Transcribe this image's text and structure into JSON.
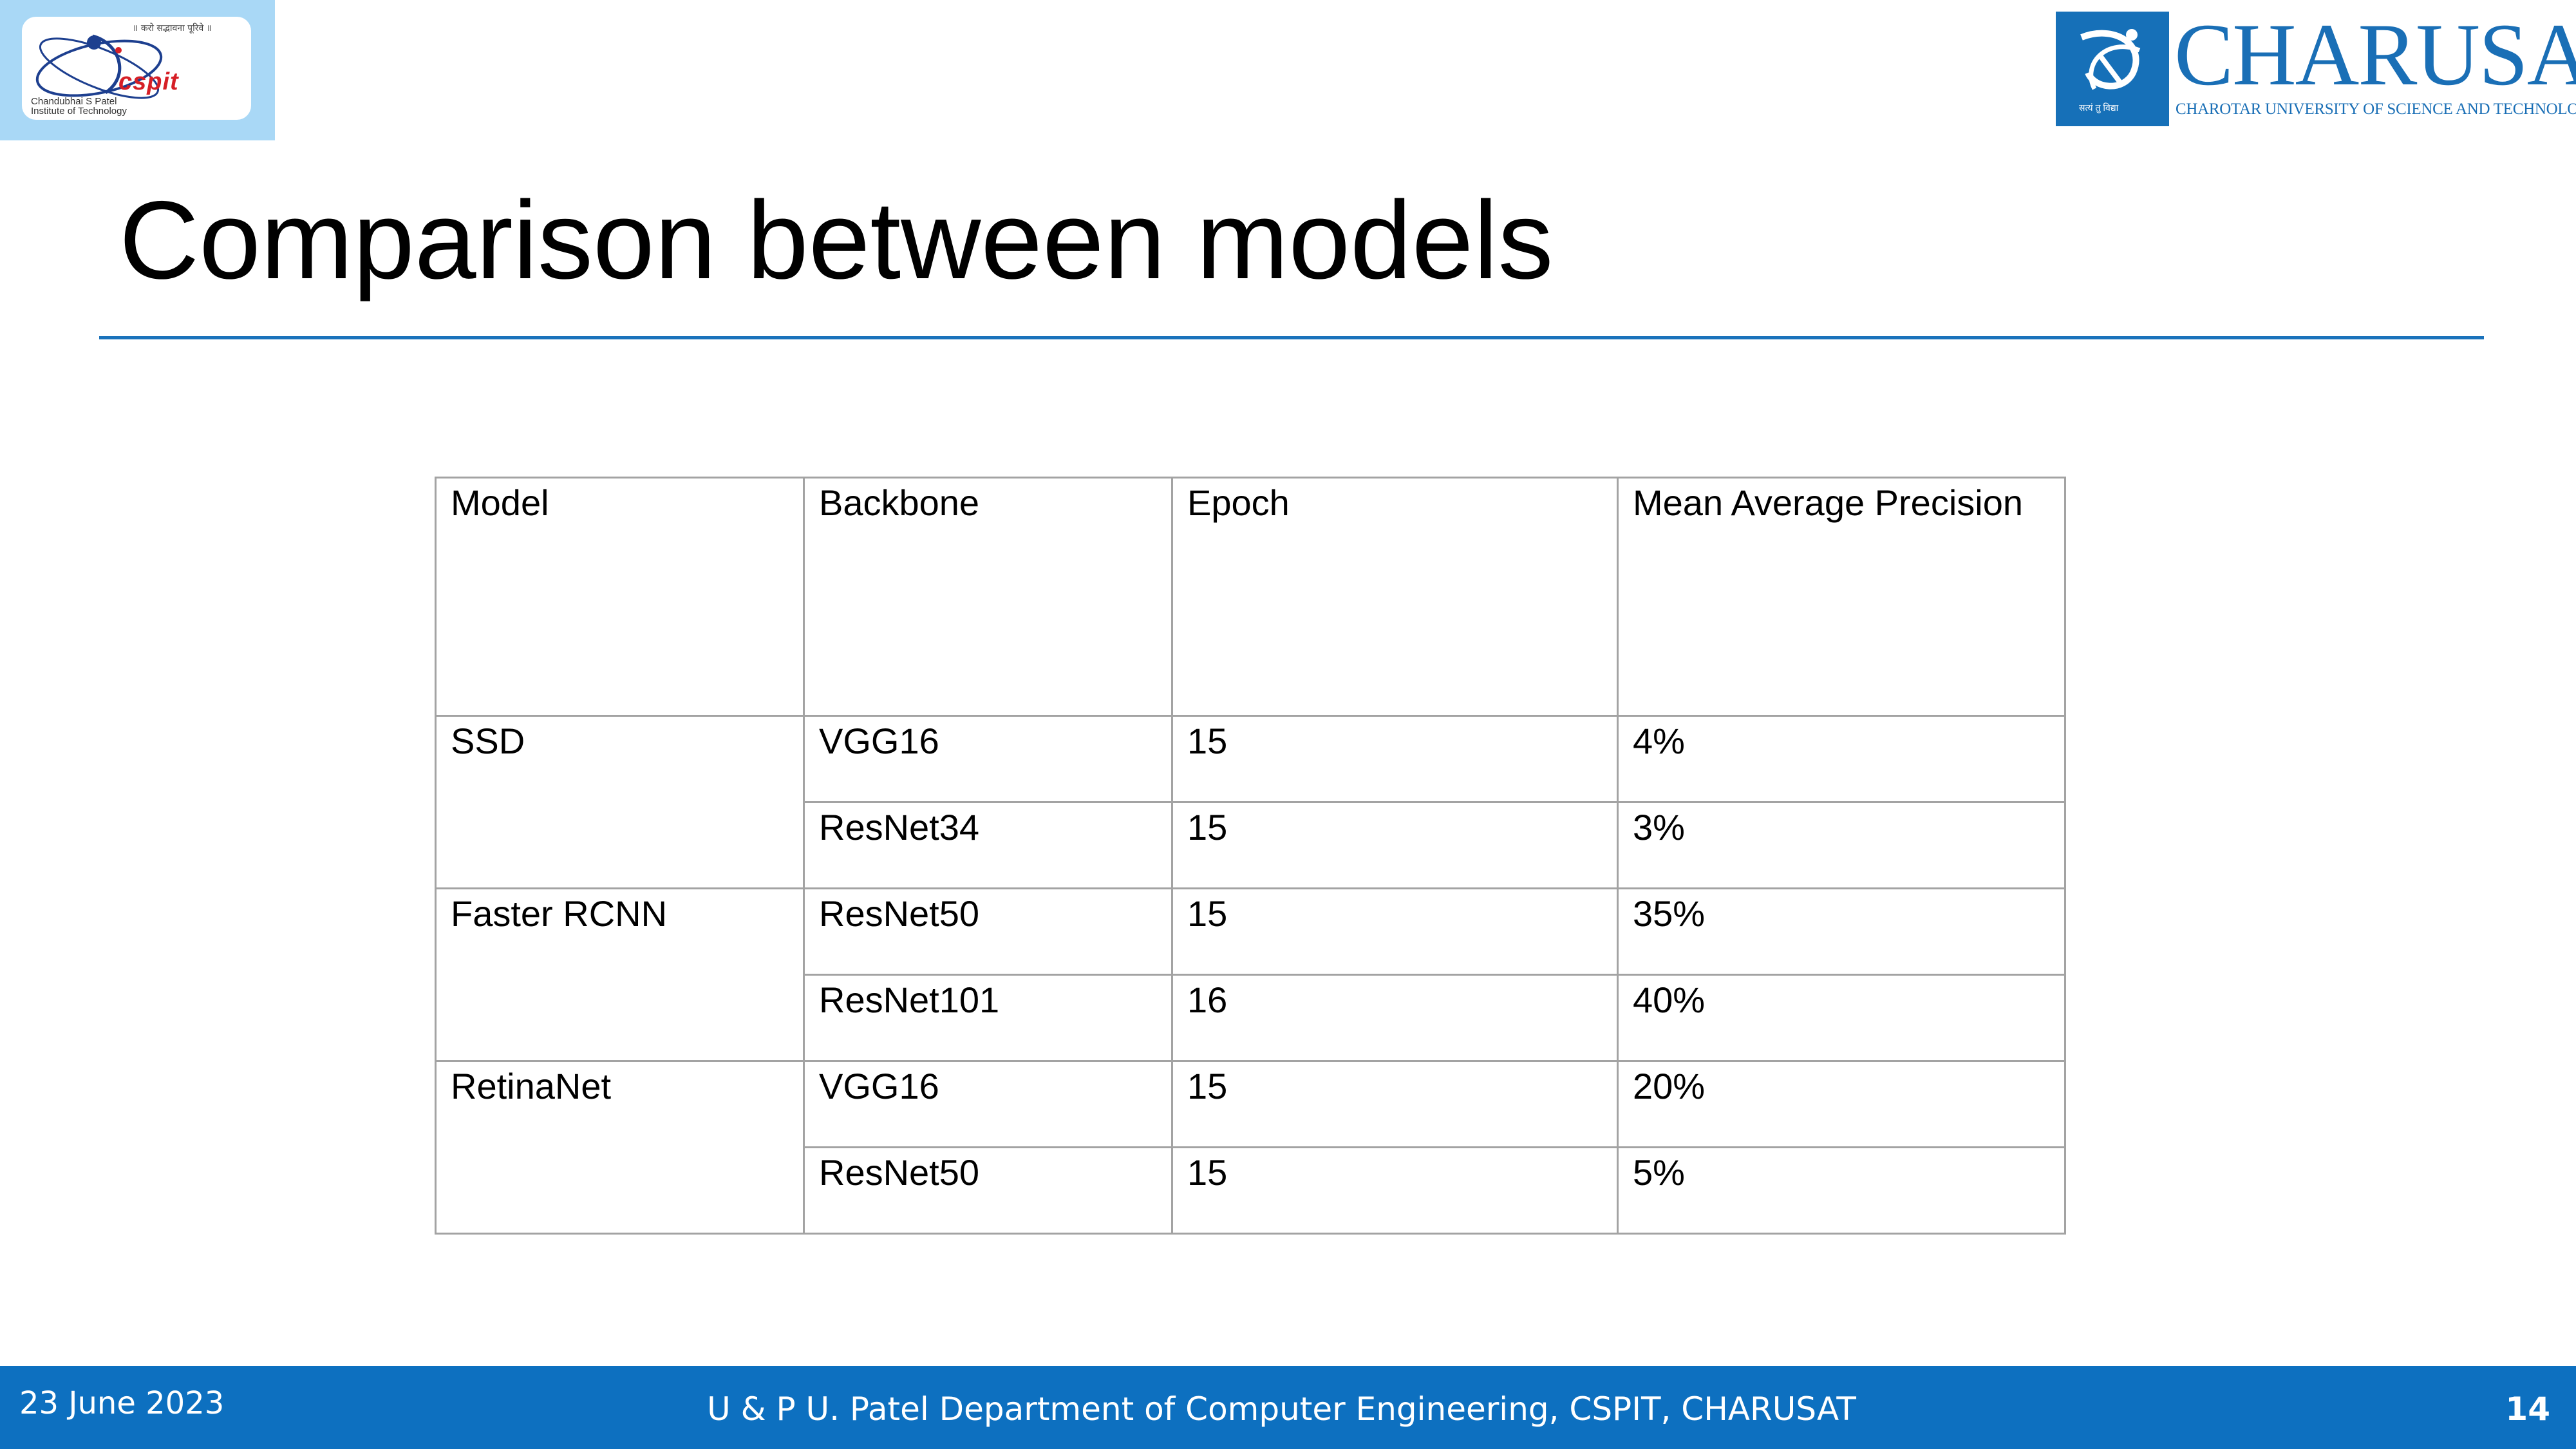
{
  "logos": {
    "left": {
      "tagline": "॥ करो सद्भावना पूरिवे ॥",
      "name": "cspit",
      "institute_lines": [
        "Chandubhai S Patel",
        "Institute of Technology"
      ]
    },
    "right": {
      "wordmark": "CHARUSAT",
      "subtitle": "CHAROTAR UNIVERSITY OF SCIENCE AND TECHNOLOGY",
      "emblem_caption": "सत्यं तु विद्या"
    }
  },
  "slide": {
    "title": "Comparison between models"
  },
  "table": {
    "headers": [
      "Model",
      "Backbone",
      "Epoch",
      "Mean Average Precision"
    ],
    "groups": [
      {
        "model": "SSD",
        "rows": [
          {
            "backbone": "VGG16",
            "epoch": "15",
            "map": "4%"
          },
          {
            "backbone": "ResNet34",
            "epoch": "15",
            "map": "3%"
          }
        ]
      },
      {
        "model": "Faster RCNN",
        "rows": [
          {
            "backbone": "ResNet50",
            "epoch": "15",
            "map": "35%"
          },
          {
            "backbone": "ResNet101",
            "epoch": "16",
            "map": "40%"
          }
        ]
      },
      {
        "model": "RetinaNet",
        "rows": [
          {
            "backbone": "VGG16",
            "epoch": "15",
            "map": "20%"
          },
          {
            "backbone": "ResNet50",
            "epoch": "15",
            "map": "5%"
          }
        ]
      }
    ]
  },
  "footer": {
    "date": "23 June 2023",
    "department": "U & P U. Patel Department of Computer Engineering, CSPIT, CHARUSAT",
    "page_number": "14"
  },
  "colors": {
    "footer_bar": "#0d70c0",
    "title_rule": "#1a72bb",
    "charusat_blue": "#1a6fb6",
    "cspit_red": "#d61f26",
    "left_logo_bg": "#a9d8f6"
  }
}
